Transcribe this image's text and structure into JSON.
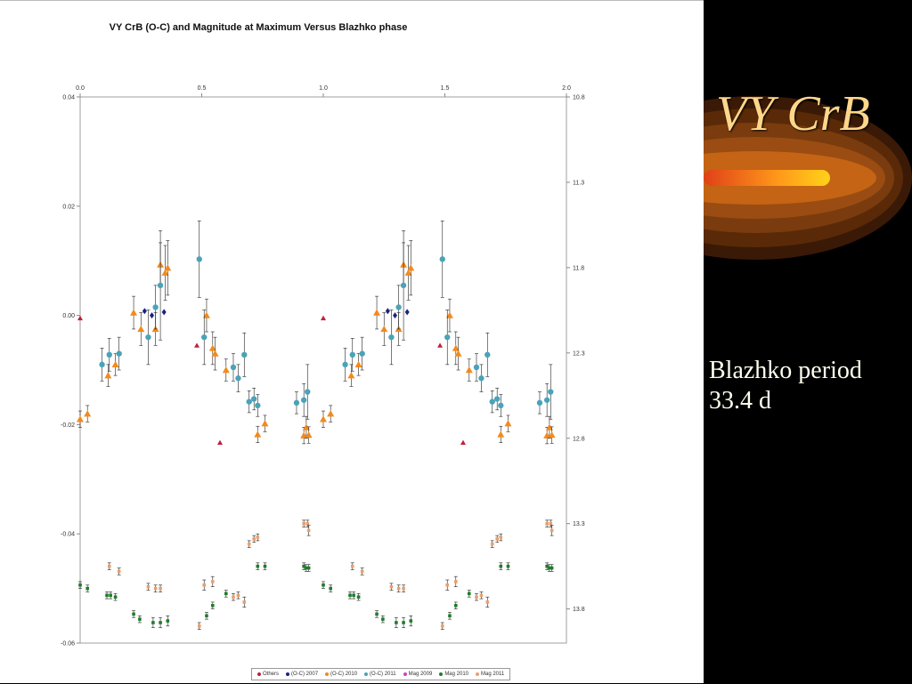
{
  "slide": {
    "title": "VY CrB",
    "body_line1": "Blazhko period",
    "body_line2": "33.4 d"
  },
  "colors": {
    "others": "#c0203a",
    "oc2007": "#1a237e",
    "oc2010": "#f28a1c",
    "oc2011": "#4aa3b8",
    "mag2009": "#d040c0",
    "mag2010": "#1e7d2a",
    "mag2011": "#e8a070",
    "comet_core": "#ffc21a",
    "comet_outer": "#5a2a08"
  },
  "chart_data": {
    "type": "scatter",
    "title": "VY CrB (O-C) and Magnitude at Maximum Versus Blazhko phase",
    "x_ticks": [
      "0.0",
      "0.5",
      "1.0",
      "1.5",
      "2.0"
    ],
    "x_range": [
      0,
      2
    ],
    "y_left_ticks": [
      "0.04",
      "0.02",
      "0.00",
      "-0.02",
      "-0.04",
      "-0.06"
    ],
    "y_left_range": [
      -0.06,
      0.04
    ],
    "y_right_ticks": [
      "10.8",
      "11.3",
      "11.8",
      "12.3",
      "12.8",
      "13.3",
      "13.8"
    ],
    "y_right_range": [
      10.8,
      14.0
    ],
    "legend": [
      "Others",
      "(O-C) 2007",
      "(O-C) 2010",
      "(O-C) 2011",
      "Mag 2009",
      "Mag 2010",
      "Mag 2011"
    ],
    "series": [
      {
        "name": "Others",
        "marker": "triangle",
        "color_key": "others",
        "axis": "left",
        "points": [
          [
            0.0,
            -0.0005,
            0
          ],
          [
            0.48,
            -0.0055,
            0
          ],
          [
            0.575,
            -0.0233,
            0
          ],
          [
            1.0,
            -0.0005,
            0
          ],
          [
            1.48,
            -0.0055,
            0
          ],
          [
            1.575,
            -0.0233,
            0
          ]
        ]
      },
      {
        "name": "(O-C) 2007",
        "marker": "diamond",
        "color_key": "oc2007",
        "axis": "left",
        "points": [
          [
            0.265,
            0.0008,
            0
          ],
          [
            0.295,
            0.0,
            0
          ],
          [
            0.345,
            0.0006,
            0
          ],
          [
            1.265,
            0.0008,
            0
          ],
          [
            1.295,
            0.0,
            0
          ],
          [
            1.345,
            0.0006,
            0
          ]
        ]
      },
      {
        "name": "(O-C) 2010",
        "marker": "triangle",
        "color_key": "oc2010",
        "axis": "left",
        "points": [
          [
            0.0,
            -0.019,
            0.0015
          ],
          [
            0.03,
            -0.018,
            0.0015
          ],
          [
            0.115,
            -0.011,
            0.002
          ],
          [
            0.145,
            -0.009,
            0.002
          ],
          [
            0.22,
            0.0005,
            0.003
          ],
          [
            0.25,
            -0.0025,
            0.003
          ],
          [
            0.31,
            -0.0025,
            0.003
          ],
          [
            0.33,
            0.0093,
            0.004
          ],
          [
            0.35,
            0.0078,
            0.005
          ],
          [
            0.36,
            0.0087,
            0.005
          ],
          [
            0.52,
            0.0,
            0.003
          ],
          [
            0.545,
            -0.006,
            0.003
          ],
          [
            0.555,
            -0.007,
            0.003
          ],
          [
            0.6,
            -0.01,
            0.002
          ],
          [
            0.73,
            -0.0218,
            0.0015
          ],
          [
            0.76,
            -0.0198,
            0.0015
          ],
          [
            0.92,
            -0.022,
            0.0015
          ],
          [
            0.93,
            -0.0205,
            0.002
          ],
          [
            0.94,
            -0.0219,
            0.0015
          ],
          [
            1.0,
            -0.019,
            0.0015
          ],
          [
            1.03,
            -0.018,
            0.0015
          ],
          [
            1.115,
            -0.011,
            0.002
          ],
          [
            1.145,
            -0.009,
            0.002
          ],
          [
            1.22,
            0.0005,
            0.003
          ],
          [
            1.25,
            -0.0025,
            0.003
          ],
          [
            1.31,
            -0.0025,
            0.003
          ],
          [
            1.33,
            0.0093,
            0.004
          ],
          [
            1.35,
            0.0078,
            0.005
          ],
          [
            1.36,
            0.0087,
            0.005
          ],
          [
            1.52,
            0.0,
            0.003
          ],
          [
            1.545,
            -0.006,
            0.003
          ],
          [
            1.555,
            -0.007,
            0.003
          ],
          [
            1.6,
            -0.01,
            0.002
          ],
          [
            1.73,
            -0.0218,
            0.0015
          ],
          [
            1.76,
            -0.0198,
            0.0015
          ],
          [
            1.92,
            -0.022,
            0.0015
          ],
          [
            1.93,
            -0.0205,
            0.002
          ],
          [
            1.94,
            -0.0219,
            0.0015
          ]
        ]
      },
      {
        "name": "(O-C) 2011",
        "marker": "circle",
        "color_key": "oc2011",
        "axis": "left",
        "points": [
          [
            0.09,
            -0.009,
            0.003
          ],
          [
            0.12,
            -0.0072,
            0.003
          ],
          [
            0.16,
            -0.007,
            0.003
          ],
          [
            0.28,
            -0.004,
            0.005
          ],
          [
            0.31,
            0.0015,
            0.004
          ],
          [
            0.33,
            0.0055,
            0.01
          ],
          [
            0.49,
            0.0103,
            0.007
          ],
          [
            0.51,
            -0.004,
            0.005
          ],
          [
            0.63,
            -0.0095,
            0.0025
          ],
          [
            0.65,
            -0.0115,
            0.0025
          ],
          [
            0.675,
            -0.0072,
            0.004
          ],
          [
            0.695,
            -0.0158,
            0.002
          ],
          [
            0.715,
            -0.0153,
            0.002
          ],
          [
            0.73,
            -0.0165,
            0.002
          ],
          [
            0.89,
            -0.016,
            0.002
          ],
          [
            0.92,
            -0.0155,
            0.003
          ],
          [
            0.935,
            -0.014,
            0.005
          ],
          [
            1.09,
            -0.009,
            0.003
          ],
          [
            1.12,
            -0.0072,
            0.003
          ],
          [
            1.16,
            -0.007,
            0.003
          ],
          [
            1.28,
            -0.004,
            0.005
          ],
          [
            1.31,
            0.0015,
            0.004
          ],
          [
            1.33,
            0.0055,
            0.01
          ],
          [
            1.49,
            0.0103,
            0.007
          ],
          [
            1.51,
            -0.004,
            0.005
          ],
          [
            1.63,
            -0.0095,
            0.0025
          ],
          [
            1.65,
            -0.0115,
            0.0025
          ],
          [
            1.675,
            -0.0072,
            0.004
          ],
          [
            1.695,
            -0.0158,
            0.002
          ],
          [
            1.715,
            -0.0153,
            0.002
          ],
          [
            1.73,
            -0.0165,
            0.002
          ],
          [
            1.89,
            -0.016,
            0.002
          ],
          [
            1.92,
            -0.0155,
            0.003
          ],
          [
            1.935,
            -0.014,
            0.005
          ]
        ]
      },
      {
        "name": "Mag 2010",
        "marker": "square",
        "color_key": "mag2010",
        "axis": "right",
        "points": [
          [
            0.0,
            13.66,
            0.02
          ],
          [
            0.03,
            13.68,
            0.02
          ],
          [
            0.11,
            13.72,
            0.02
          ],
          [
            0.125,
            13.72,
            0.02
          ],
          [
            0.145,
            13.73,
            0.02
          ],
          [
            0.22,
            13.83,
            0.02
          ],
          [
            0.245,
            13.86,
            0.02
          ],
          [
            0.3,
            13.88,
            0.03
          ],
          [
            0.33,
            13.88,
            0.03
          ],
          [
            0.36,
            13.87,
            0.03
          ],
          [
            0.52,
            13.84,
            0.02
          ],
          [
            0.545,
            13.78,
            0.02
          ],
          [
            0.6,
            13.71,
            0.02
          ],
          [
            0.73,
            13.55,
            0.02
          ],
          [
            0.76,
            13.55,
            0.02
          ],
          [
            0.92,
            13.55,
            0.02
          ],
          [
            0.93,
            13.56,
            0.02
          ],
          [
            0.94,
            13.56,
            0.02
          ],
          [
            1.0,
            13.66,
            0.02
          ],
          [
            1.03,
            13.68,
            0.02
          ],
          [
            1.11,
            13.72,
            0.02
          ],
          [
            1.125,
            13.72,
            0.02
          ],
          [
            1.145,
            13.73,
            0.02
          ],
          [
            1.22,
            13.83,
            0.02
          ],
          [
            1.245,
            13.86,
            0.02
          ],
          [
            1.3,
            13.88,
            0.03
          ],
          [
            1.33,
            13.88,
            0.03
          ],
          [
            1.36,
            13.87,
            0.03
          ],
          [
            1.52,
            13.84,
            0.02
          ],
          [
            1.545,
            13.78,
            0.02
          ],
          [
            1.6,
            13.71,
            0.02
          ],
          [
            1.73,
            13.55,
            0.02
          ],
          [
            1.76,
            13.55,
            0.02
          ],
          [
            1.92,
            13.55,
            0.02
          ],
          [
            1.93,
            13.56,
            0.02
          ],
          [
            1.94,
            13.56,
            0.02
          ]
        ]
      },
      {
        "name": "Mag 2011",
        "marker": "square",
        "color_key": "mag2011",
        "axis": "right",
        "points": [
          [
            0.12,
            13.55,
            0.02
          ],
          [
            0.16,
            13.58,
            0.02
          ],
          [
            0.28,
            13.67,
            0.02
          ],
          [
            0.31,
            13.68,
            0.02
          ],
          [
            0.33,
            13.68,
            0.02
          ],
          [
            0.49,
            13.9,
            0.02
          ],
          [
            0.51,
            13.66,
            0.03
          ],
          [
            0.545,
            13.64,
            0.03
          ],
          [
            0.63,
            13.73,
            0.02
          ],
          [
            0.65,
            13.72,
            0.02
          ],
          [
            0.675,
            13.76,
            0.03
          ],
          [
            0.695,
            13.42,
            0.02
          ],
          [
            0.715,
            13.39,
            0.02
          ],
          [
            0.73,
            13.38,
            0.02
          ],
          [
            0.92,
            13.3,
            0.02
          ],
          [
            0.935,
            13.3,
            0.02
          ],
          [
            0.94,
            13.34,
            0.03
          ],
          [
            1.12,
            13.55,
            0.02
          ],
          [
            1.16,
            13.58,
            0.02
          ],
          [
            1.28,
            13.67,
            0.02
          ],
          [
            1.31,
            13.68,
            0.02
          ],
          [
            1.33,
            13.68,
            0.02
          ],
          [
            1.49,
            13.9,
            0.02
          ],
          [
            1.51,
            13.66,
            0.03
          ],
          [
            1.545,
            13.64,
            0.03
          ],
          [
            1.63,
            13.73,
            0.02
          ],
          [
            1.65,
            13.72,
            0.02
          ],
          [
            1.675,
            13.76,
            0.03
          ],
          [
            1.695,
            13.42,
            0.02
          ],
          [
            1.715,
            13.39,
            0.02
          ],
          [
            1.73,
            13.38,
            0.02
          ],
          [
            1.92,
            13.3,
            0.02
          ],
          [
            1.935,
            13.3,
            0.02
          ],
          [
            1.94,
            13.34,
            0.03
          ]
        ]
      }
    ]
  }
}
